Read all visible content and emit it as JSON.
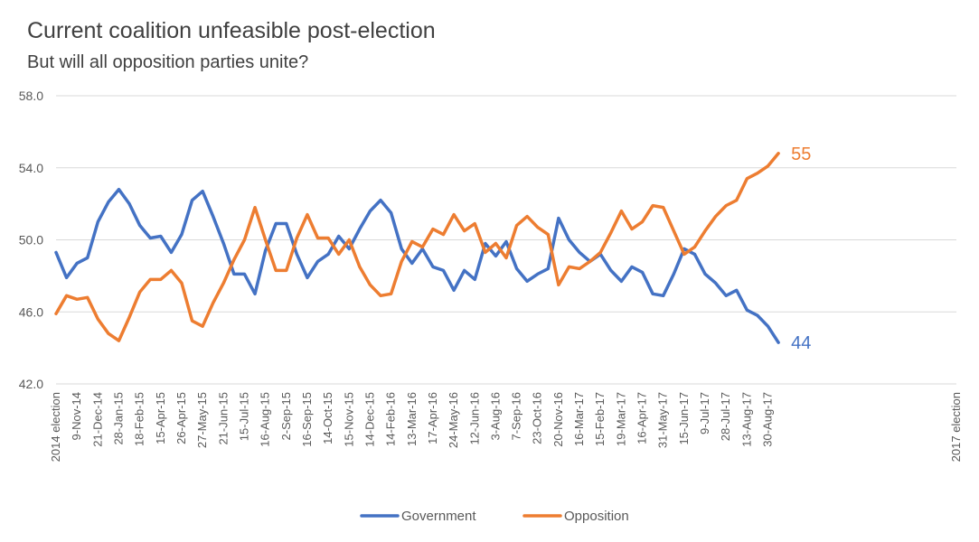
{
  "title": "Current coalition unfeasible post-election",
  "subtitle": "But will all opposition parties unite?",
  "chart_data": {
    "type": "line",
    "title": "Current coalition unfeasible post-election",
    "subtitle": "But will all opposition parties unite?",
    "xlabel": "",
    "ylabel": "",
    "ylim": [
      42.0,
      58.0
    ],
    "yticks": [
      "42.0",
      "46.0",
      "50.0",
      "54.0",
      "58.0"
    ],
    "grid": true,
    "legend": "bottom",
    "point_count": 87,
    "x_labels": [
      "2014 election",
      "9-Nov-14",
      "21-Dec-14",
      "28-Jan-15",
      "18-Feb-15",
      "15-Apr-15",
      "26-Apr-15",
      "27-May-15",
      "21-Jun-15",
      "15-Jul-15",
      "16-Aug-15",
      "2-Sep-15",
      "16-Sep-15",
      "14-Oct-15",
      "15-Nov-15",
      "14-Dec-15",
      "14-Feb-16",
      "13-Mar-16",
      "17-Apr-16",
      "24-May-16",
      "12-Jun-16",
      "3-Aug-16",
      "7-Sep-16",
      "23-Oct-16",
      "20-Nov-16",
      "16-Mar-17",
      "15-Feb-17",
      "19-Mar-17",
      "16-Apr-17",
      "31-May-17",
      "15-Jun-17",
      "9-Jul-17",
      "28-Jul-17",
      "13-Aug-17",
      "30-Aug-17",
      "2017 election"
    ],
    "x_label_index": [
      0,
      2,
      4,
      6,
      8,
      10,
      12,
      14,
      16,
      18,
      20,
      22,
      24,
      26,
      28,
      30,
      32,
      34,
      36,
      38,
      40,
      42,
      44,
      46,
      48,
      50,
      52,
      54,
      56,
      58,
      60,
      62,
      64,
      66,
      68,
      86
    ],
    "series": [
      {
        "name": "Government",
        "color": "#4472C4",
        "values": [
          49.3,
          47.9,
          48.7,
          49.0,
          51.0,
          52.1,
          52.8,
          52.0,
          50.8,
          50.1,
          50.2,
          49.3,
          50.3,
          52.2,
          52.7,
          51.3,
          49.8,
          48.1,
          48.1,
          47.0,
          49.4,
          50.9,
          50.9,
          49.2,
          47.9,
          48.8,
          49.2,
          50.2,
          49.5,
          50.6,
          51.6,
          52.2,
          51.5,
          49.5,
          48.7,
          49.5,
          48.5,
          48.3,
          47.2,
          48.3,
          47.8,
          49.8,
          49.1,
          49.9,
          48.4,
          47.7,
          48.1,
          48.4,
          51.2,
          50.0,
          49.3,
          48.8,
          49.2,
          48.3,
          47.7,
          48.5,
          48.2,
          47.0,
          46.9,
          48.1,
          49.5,
          49.2,
          48.1,
          47.6,
          46.9,
          47.2,
          46.1,
          45.8,
          45.2,
          44.3,
          null,
          null,
          null,
          null,
          null,
          null,
          null,
          null,
          null,
          null,
          null,
          null,
          null,
          null,
          null,
          null,
          null
        ]
      },
      {
        "name": "Opposition",
        "color": "#ED7D31",
        "values": [
          45.9,
          46.9,
          46.7,
          46.8,
          45.6,
          44.8,
          44.4,
          45.7,
          47.1,
          47.8,
          47.8,
          48.3,
          47.6,
          45.5,
          45.2,
          46.5,
          47.6,
          48.9,
          50.0,
          51.8,
          50.0,
          48.3,
          48.3,
          50.1,
          51.4,
          50.1,
          50.1,
          49.2,
          50.0,
          48.5,
          47.5,
          46.9,
          47.0,
          48.8,
          49.9,
          49.6,
          50.6,
          50.3,
          51.4,
          50.5,
          50.9,
          49.3,
          49.8,
          49.0,
          50.8,
          51.3,
          50.7,
          50.3,
          47.5,
          48.5,
          48.4,
          48.8,
          49.3,
          50.4,
          51.6,
          50.6,
          51.0,
          51.9,
          51.8,
          50.5,
          49.2,
          49.6,
          50.5,
          51.3,
          51.9,
          52.2,
          53.4,
          53.7,
          54.1,
          54.8,
          null,
          null,
          null,
          null,
          null,
          null,
          null,
          null,
          null,
          null,
          null,
          null,
          null,
          null,
          null,
          null,
          null
        ]
      }
    ],
    "end_labels": [
      {
        "series": "Opposition",
        "text": "55"
      },
      {
        "series": "Government",
        "text": "44"
      }
    ]
  }
}
